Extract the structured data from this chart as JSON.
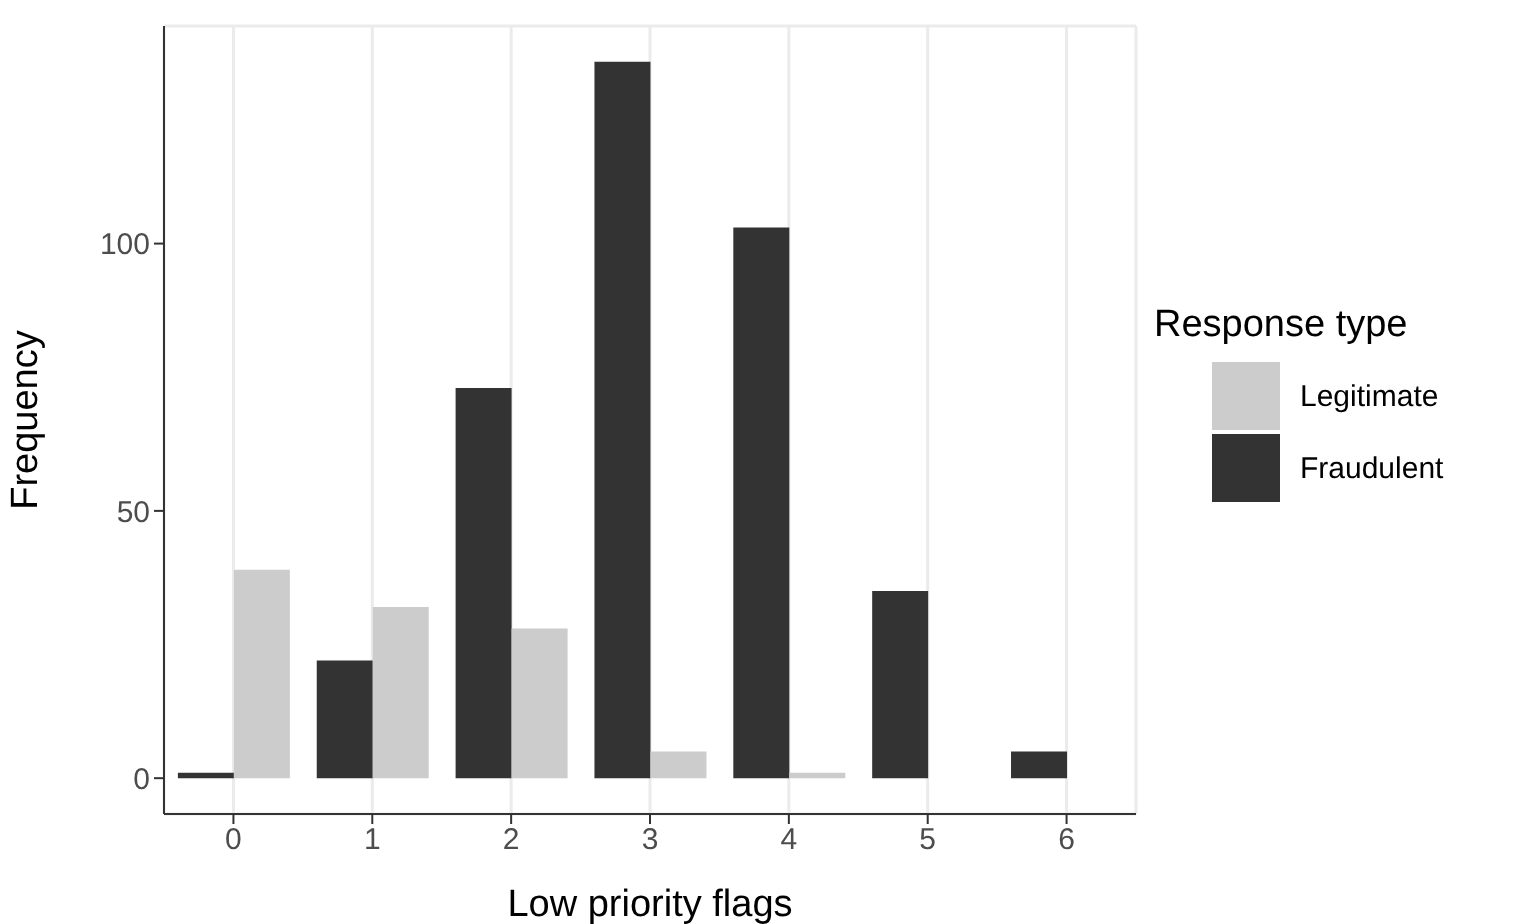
{
  "chart_data": {
    "type": "bar",
    "xlabel": "Low priority flags",
    "ylabel": "Frequency",
    "legend_title": "Response type",
    "legend": "right",
    "categories": [
      "0",
      "1",
      "2",
      "3",
      "4",
      "5",
      "6"
    ],
    "series": [
      {
        "name": "Legitimate",
        "color": "#cccccc",
        "values": [
          39,
          32,
          28,
          5,
          1,
          0,
          0
        ]
      },
      {
        "name": "Fraudulent",
        "color": "#333333",
        "values": [
          1,
          22,
          73,
          134,
          103,
          35,
          5
        ]
      }
    ],
    "ylim": [
      -6.7,
      140.7
    ],
    "yticks": [
      0,
      50,
      100
    ],
    "grid": true
  }
}
